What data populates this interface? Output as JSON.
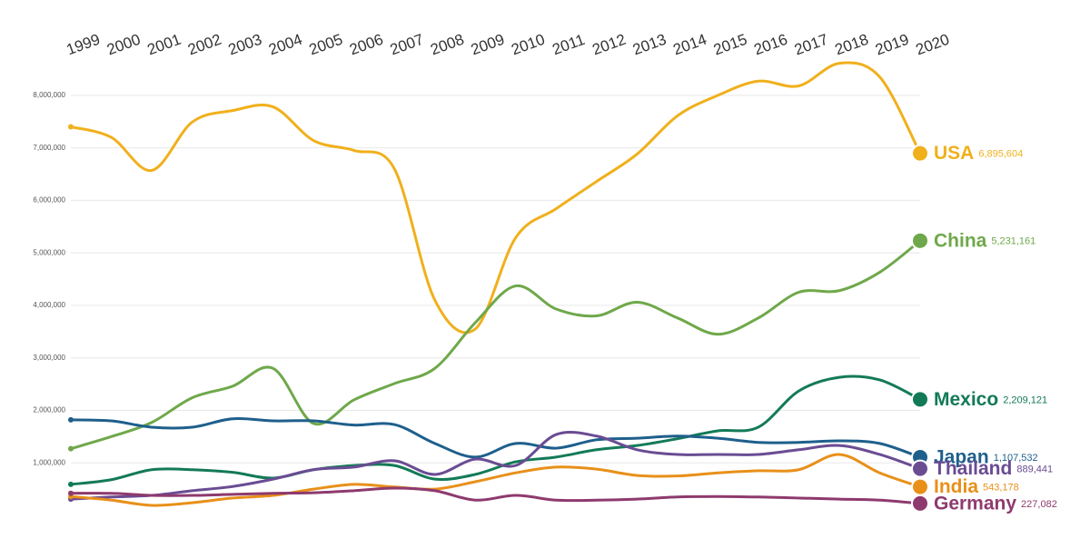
{
  "chart_data": {
    "type": "line",
    "categories": [
      "1999",
      "2000",
      "2001",
      "2002",
      "2003",
      "2004",
      "2005",
      "2006",
      "2007",
      "2008",
      "2009",
      "2010",
      "2011",
      "2012",
      "2013",
      "2014",
      "2015",
      "2016",
      "2017",
      "2018",
      "2019",
      "2020"
    ],
    "ylim": [
      0,
      8500000
    ],
    "yticks": [
      {
        "value": 1000000,
        "label": "1,000,000"
      },
      {
        "value": 2000000,
        "label": "2,000,000"
      },
      {
        "value": 3000000,
        "label": "3,000,000"
      },
      {
        "value": 4000000,
        "label": "4,000,000"
      },
      {
        "value": 5000000,
        "label": "5,000,000"
      },
      {
        "value": 6000000,
        "label": "6,000,000"
      },
      {
        "value": 7000000,
        "label": "7,000,000"
      },
      {
        "value": 8000000,
        "label": "8,000,000"
      }
    ],
    "grid": true,
    "series": [
      {
        "name": "USA",
        "color": "#f0b01c",
        "values": [
          7400000,
          7200000,
          6570000,
          7490000,
          7710000,
          7780000,
          7140000,
          6950000,
          6600000,
          4100000,
          3550000,
          5290000,
          5840000,
          6360000,
          6880000,
          7610000,
          8000000,
          8270000,
          8180000,
          8610000,
          8350000,
          6895604
        ],
        "value_labels": [
          null,
          null,
          null,
          null,
          null,
          null,
          null,
          null,
          null,
          null,
          null,
          null,
          null,
          null,
          null,
          null,
          null,
          null,
          null,
          null,
          null,
          "6,895,604"
        ]
      },
      {
        "name": "China",
        "color": "#6fa84a",
        "values": [
          1270000,
          1500000,
          1770000,
          2240000,
          2460000,
          2800000,
          1750000,
          2200000,
          2510000,
          2800000,
          3670000,
          4370000,
          3930000,
          3800000,
          4060000,
          3760000,
          3450000,
          3760000,
          4250000,
          4280000,
          4630000,
          5231161
        ],
        "value_labels": [
          null,
          null,
          null,
          null,
          null,
          null,
          null,
          null,
          null,
          null,
          null,
          null,
          null,
          null,
          null,
          null,
          null,
          null,
          null,
          null,
          null,
          "5,231,161"
        ]
      },
      {
        "name": "Mexico",
        "color": "#137a57",
        "values": [
          590000,
          680000,
          870000,
          870000,
          820000,
          710000,
          870000,
          950000,
          950000,
          690000,
          780000,
          1020000,
          1110000,
          1250000,
          1330000,
          1460000,
          1610000,
          1680000,
          2370000,
          2630000,
          2580000,
          2209121
        ],
        "value_labels": [
          null,
          null,
          null,
          null,
          null,
          null,
          null,
          null,
          null,
          null,
          null,
          null,
          null,
          null,
          null,
          null,
          null,
          null,
          null,
          null,
          null,
          "2,209,121"
        ]
      },
      {
        "name": "Japan",
        "color": "#1e5f8c",
        "values": [
          1820000,
          1800000,
          1680000,
          1680000,
          1840000,
          1800000,
          1800000,
          1720000,
          1730000,
          1370000,
          1110000,
          1370000,
          1280000,
          1440000,
          1470000,
          1510000,
          1470000,
          1390000,
          1390000,
          1420000,
          1370000,
          1107532
        ],
        "value_labels": [
          null,
          null,
          null,
          null,
          null,
          null,
          null,
          null,
          null,
          null,
          null,
          null,
          null,
          null,
          null,
          null,
          null,
          null,
          null,
          null,
          null,
          "1,107,532"
        ]
      },
      {
        "name": "Thailand",
        "color": "#6a4c93",
        "values": [
          310000,
          350000,
          380000,
          470000,
          550000,
          690000,
          870000,
          920000,
          1040000,
          780000,
          1070000,
          950000,
          1540000,
          1510000,
          1250000,
          1160000,
          1160000,
          1160000,
          1250000,
          1330000,
          1160000,
          889441
        ],
        "value_labels": [
          null,
          null,
          null,
          null,
          null,
          null,
          null,
          null,
          null,
          null,
          null,
          null,
          null,
          null,
          null,
          null,
          null,
          null,
          null,
          null,
          null,
          "889,441"
        ]
      },
      {
        "name": "India",
        "color": "#e8901a",
        "values": [
          360000,
          290000,
          190000,
          240000,
          330000,
          380000,
          500000,
          590000,
          540000,
          500000,
          640000,
          810000,
          920000,
          880000,
          760000,
          750000,
          810000,
          850000,
          870000,
          1160000,
          810000,
          543178
        ],
        "value_labels": [
          null,
          null,
          null,
          null,
          null,
          null,
          null,
          null,
          null,
          null,
          null,
          null,
          null,
          null,
          null,
          null,
          null,
          null,
          null,
          null,
          null,
          "543,178"
        ]
      },
      {
        "name": "Germany",
        "color": "#8e3a6e",
        "values": [
          420000,
          420000,
          380000,
          380000,
          400000,
          420000,
          430000,
          470000,
          520000,
          470000,
          290000,
          380000,
          290000,
          290000,
          310000,
          350000,
          360000,
          350000,
          330000,
          310000,
          290000,
          227082
        ],
        "value_labels": [
          null,
          null,
          null,
          null,
          null,
          null,
          null,
          null,
          null,
          null,
          null,
          null,
          null,
          null,
          null,
          null,
          null,
          null,
          null,
          null,
          null,
          "227,082"
        ]
      }
    ]
  }
}
